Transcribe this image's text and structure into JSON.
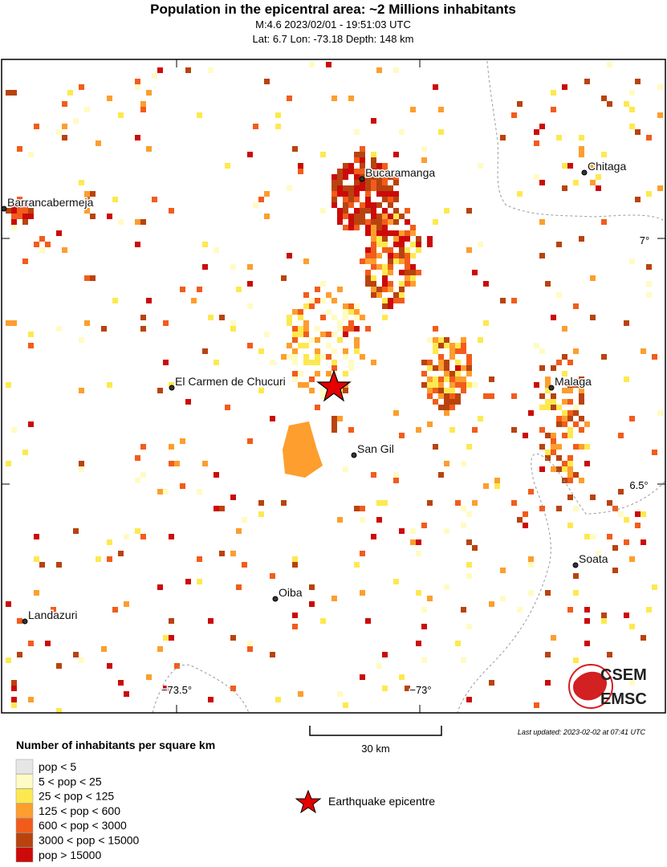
{
  "header": {
    "title": "Population in the epicentral area: ~2 Millions inhabitants",
    "event": "M:4.6 2023/02/01 - 19:51:03 UTC",
    "location": "Lat: 6.7 Lon: -73.18 Depth: 148 km"
  },
  "map": {
    "cities": [
      {
        "label": "Bucaramanga"
      },
      {
        "label": "Chitaga"
      },
      {
        "label": "Barrancabermeja"
      },
      {
        "label": "El Carmen de Chucuri"
      },
      {
        "label": "Malaga"
      },
      {
        "label": "San Gil"
      },
      {
        "label": "Soata"
      },
      {
        "label": "Oiba"
      },
      {
        "label": "Landazuri"
      }
    ],
    "axis_labels": [
      "7°",
      "6.5°",
      "−73.5°",
      "−73°"
    ]
  },
  "scale_bar": {
    "label": "30 km"
  },
  "last_updated": "Last updated: 2023-02-02 at 07:41 UTC",
  "legend": {
    "title": "Number of inhabitants per square km",
    "items": [
      {
        "label": "pop < 5",
        "color": "#e6e6e6"
      },
      {
        "label": "5 < pop < 25",
        "color": "#fffbc4"
      },
      {
        "label": "25 < pop < 125",
        "color": "#fde94f"
      },
      {
        "label": "125 < pop < 600",
        "color": "#fd9e2e"
      },
      {
        "label": "600 < pop < 3000",
        "color": "#f25c1b"
      },
      {
        "label": "3000 < pop < 15000",
        "color": "#b8430f"
      },
      {
        "label": "pop > 15000",
        "color": "#cc0a0a"
      }
    ],
    "epicentre": "Earthquake epicentre"
  },
  "logo": {
    "top": "CSEM",
    "bottom": "EMSC"
  }
}
